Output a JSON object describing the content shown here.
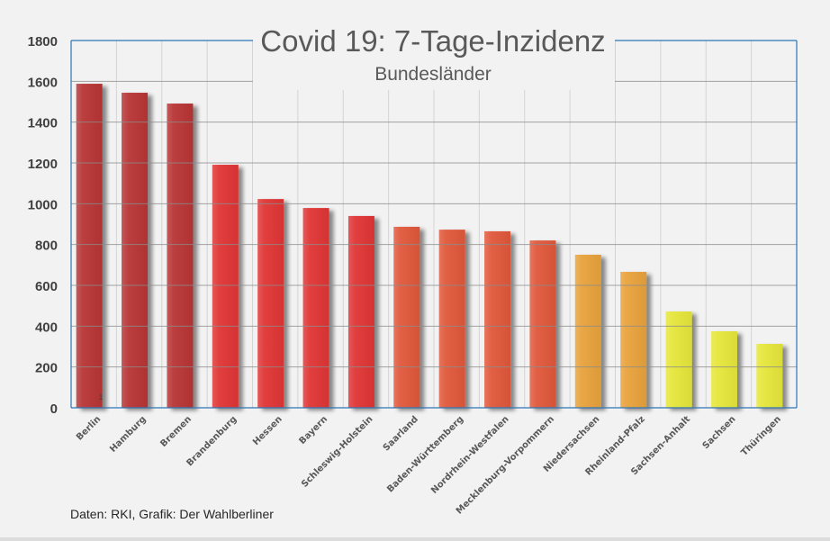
{
  "chart_data": {
    "type": "bar",
    "title": "Covid 19: 7-Tage-Inzidenz",
    "subtitle": "Bundesländer",
    "xlabel": "",
    "ylabel": "",
    "ylim": [
      0,
      1800
    ],
    "yticks": [
      0,
      200,
      400,
      600,
      800,
      1000,
      1200,
      1400,
      1600,
      1800
    ],
    "grid": true,
    "legend": "none",
    "annotation": "1",
    "categories": [
      "Berlin",
      "Hamburg",
      "Bremen",
      "Brandenburg",
      "Hessen",
      "Bayern",
      "Schleswig-Holstein",
      "Saarland",
      "Baden-Württemberg",
      "Nordrhein-Westfalen",
      "Mecklenburg-Vorpommern",
      "Niedersachsen",
      "Rheinland-Pfalz",
      "Sachsen-Anhalt",
      "Sachsen",
      "Thüringen"
    ],
    "values": [
      1588,
      1544,
      1491,
      1191,
      1023,
      979,
      940,
      887,
      873,
      865,
      820,
      750,
      666,
      472,
      375,
      313
    ],
    "colors": [
      "#b83535",
      "#b83535",
      "#b83535",
      "#e03535",
      "#e03535",
      "#e03535",
      "#e03535",
      "#e0583a",
      "#e0583a",
      "#e0583a",
      "#e0583a",
      "#e8a23a",
      "#e8a23a",
      "#e6e63a",
      "#e6e63a",
      "#e6e63a"
    ]
  },
  "footer": {
    "source": "Daten: RKI, Grafik: Der Wahlberliner"
  }
}
